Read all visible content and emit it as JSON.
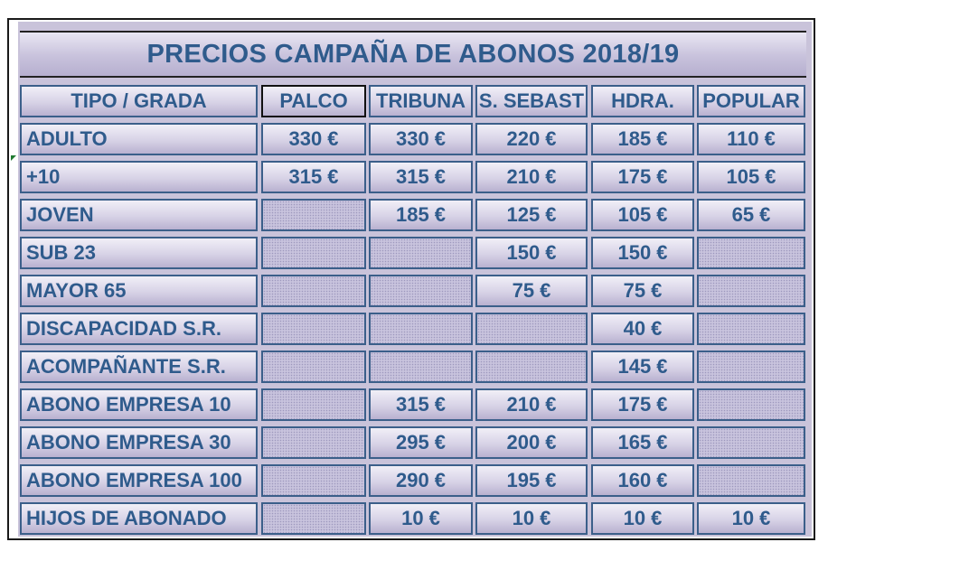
{
  "title": "PRECIOS CAMPAÑA DE ABONOS 2018/19",
  "headers": [
    "TIPO / GRADA",
    "PALCO",
    "TRIBUNA",
    "S. SEBAST",
    "HDRA.",
    "POPULAR"
  ],
  "rows": [
    {
      "label": "ADULTO",
      "values": [
        "330 €",
        "330 €",
        "220 €",
        "185 €",
        "110 €"
      ]
    },
    {
      "label": "+10",
      "values": [
        "315 €",
        "315 €",
        "210 €",
        "175 €",
        "105 €"
      ]
    },
    {
      "label": "JOVEN",
      "values": [
        "",
        "185 €",
        "125 €",
        "105 €",
        "65 €"
      ]
    },
    {
      "label": "SUB 23",
      "values": [
        "",
        "",
        "150 €",
        "150 €",
        ""
      ]
    },
    {
      "label": "MAYOR 65",
      "values": [
        "",
        "",
        "75 €",
        "75 €",
        ""
      ]
    },
    {
      "label": "DISCAPACIDAD S.R.",
      "values": [
        "",
        "",
        "",
        "40 €",
        ""
      ]
    },
    {
      "label": "ACOMPAÑANTE S.R.",
      "values": [
        "",
        "",
        "",
        "145 €",
        ""
      ]
    },
    {
      "label": "ABONO EMPRESA 10",
      "values": [
        "",
        "315 €",
        "210 €",
        "175 €",
        ""
      ]
    },
    {
      "label": "ABONO EMPRESA 30",
      "values": [
        "",
        "295 €",
        "200 €",
        "165 €",
        ""
      ]
    },
    {
      "label": "ABONO EMPRESA 100",
      "values": [
        "",
        "290 €",
        "195 €",
        "160 €",
        ""
      ]
    },
    {
      "label": "HIJOS DE ABONADO",
      "values": [
        "",
        "10 €",
        "10 €",
        "10 €",
        "10 €"
      ]
    }
  ],
  "colors": {
    "text": "#2f5b8c",
    "cell_border": "#3b5f8a",
    "background": "#c9c3da",
    "empty_pattern": "#c8c3dd"
  }
}
